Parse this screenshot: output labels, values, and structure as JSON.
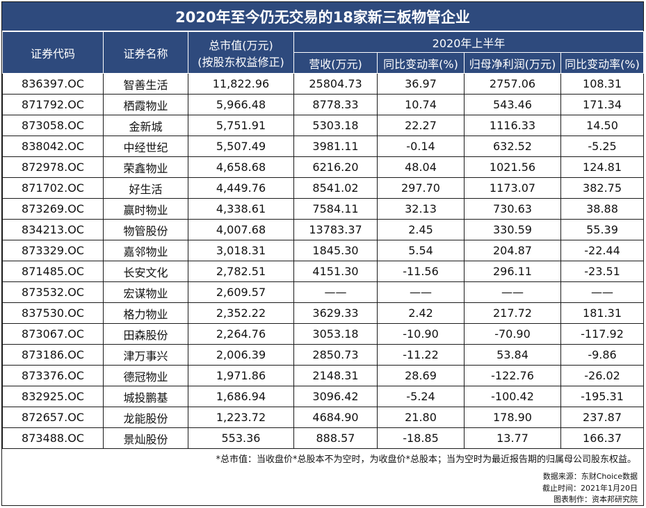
{
  "title": "2020年至今仍无交易的18家新三板物管企业",
  "headers": {
    "code": "证券代码",
    "name": "证券名称",
    "mcap_line1": "总市值(万元)",
    "mcap_line2": "(按股东权益修正)",
    "group": "2020年上半年",
    "revenue": "营收(万元)",
    "rev_yoy": "同比变动率(%)",
    "profit": "归母净利润(万元)",
    "profit_yoy": "同比变动率(%)"
  },
  "rows": [
    {
      "code": "836397.OC",
      "name": "智善生活",
      "mcap": "11,822.96",
      "revenue": "25804.73",
      "rev_yoy": "36.97",
      "profit": "2757.06",
      "profit_yoy": "108.31"
    },
    {
      "code": "871792.OC",
      "name": "栖霞物业",
      "mcap": "5,966.48",
      "revenue": "8778.33",
      "rev_yoy": "10.74",
      "profit": "543.46",
      "profit_yoy": "171.34"
    },
    {
      "code": "873058.OC",
      "name": "金新城",
      "mcap": "5,751.91",
      "revenue": "5303.18",
      "rev_yoy": "22.27",
      "profit": "1116.33",
      "profit_yoy": "14.50"
    },
    {
      "code": "838042.OC",
      "name": "中经世纪",
      "mcap": "5,507.49",
      "revenue": "3981.11",
      "rev_yoy": "-0.14",
      "profit": "632.52",
      "profit_yoy": "-5.25"
    },
    {
      "code": "872978.OC",
      "name": "荣鑫物业",
      "mcap": "4,658.68",
      "revenue": "6216.20",
      "rev_yoy": "48.04",
      "profit": "1021.56",
      "profit_yoy": "124.81"
    },
    {
      "code": "871702.OC",
      "name": "好生活",
      "mcap": "4,449.76",
      "revenue": "8541.02",
      "rev_yoy": "297.70",
      "profit": "1173.07",
      "profit_yoy": "382.75"
    },
    {
      "code": "873269.OC",
      "name": "赢时物业",
      "mcap": "4,338.61",
      "revenue": "7584.11",
      "rev_yoy": "32.13",
      "profit": "730.63",
      "profit_yoy": "38.88"
    },
    {
      "code": "834213.OC",
      "name": "物管股份",
      "mcap": "4,007.68",
      "revenue": "13783.37",
      "rev_yoy": "2.45",
      "profit": "330.59",
      "profit_yoy": "55.39"
    },
    {
      "code": "873329.OC",
      "name": "嘉邻物业",
      "mcap": "3,018.31",
      "revenue": "1845.30",
      "rev_yoy": "5.54",
      "profit": "204.87",
      "profit_yoy": "-22.44"
    },
    {
      "code": "871485.OC",
      "name": "长安文化",
      "mcap": "2,782.51",
      "revenue": "4151.30",
      "rev_yoy": "-11.56",
      "profit": "296.11",
      "profit_yoy": "-23.51"
    },
    {
      "code": "873532.OC",
      "name": "宏谋物业",
      "mcap": "2,609.57",
      "revenue": "——",
      "rev_yoy": "——",
      "profit": "——",
      "profit_yoy": "——"
    },
    {
      "code": "837530.OC",
      "name": "格力物业",
      "mcap": "2,352.22",
      "revenue": "3629.33",
      "rev_yoy": "2.42",
      "profit": "217.72",
      "profit_yoy": "181.31"
    },
    {
      "code": "873067.OC",
      "name": "田森股份",
      "mcap": "2,264.76",
      "revenue": "3053.18",
      "rev_yoy": "-10.90",
      "profit": "-70.90",
      "profit_yoy": "-117.92"
    },
    {
      "code": "873186.OC",
      "name": "津万事兴",
      "mcap": "2,006.39",
      "revenue": "2850.73",
      "rev_yoy": "-11.22",
      "profit": "53.84",
      "profit_yoy": "-9.86"
    },
    {
      "code": "873376.OC",
      "name": "德冠物业",
      "mcap": "1,971.86",
      "revenue": "2148.31",
      "rev_yoy": "28.69",
      "profit": "-122.76",
      "profit_yoy": "-26.02"
    },
    {
      "code": "832925.OC",
      "name": "城投鹏基",
      "mcap": "1,686.94",
      "revenue": "3096.42",
      "rev_yoy": "-5.24",
      "profit": "-100.42",
      "profit_yoy": "-195.31"
    },
    {
      "code": "872657.OC",
      "name": "龙能股份",
      "mcap": "1,223.72",
      "revenue": "4684.90",
      "rev_yoy": "21.80",
      "profit": "178.90",
      "profit_yoy": "237.87"
    },
    {
      "code": "873488.OC",
      "name": "景灿股份",
      "mcap": "553.36",
      "revenue": "888.57",
      "rev_yoy": "-18.85",
      "profit": "13.77",
      "profit_yoy": "166.37"
    }
  ],
  "footer": {
    "note": "*总市值：当收盘价*总股本不为空时，为收盘价*总股本；当为空时为最近报告期的归属母公司股东权益。",
    "source": "数据来源：东财Choice数据",
    "cutoff": "截止时间：2021年1月20日",
    "maker": "图表制作：资本邦研究院"
  },
  "colors": {
    "header_bg": "#2e4a7d",
    "header_text": "#ffffff",
    "border": "#1a1a1a"
  }
}
